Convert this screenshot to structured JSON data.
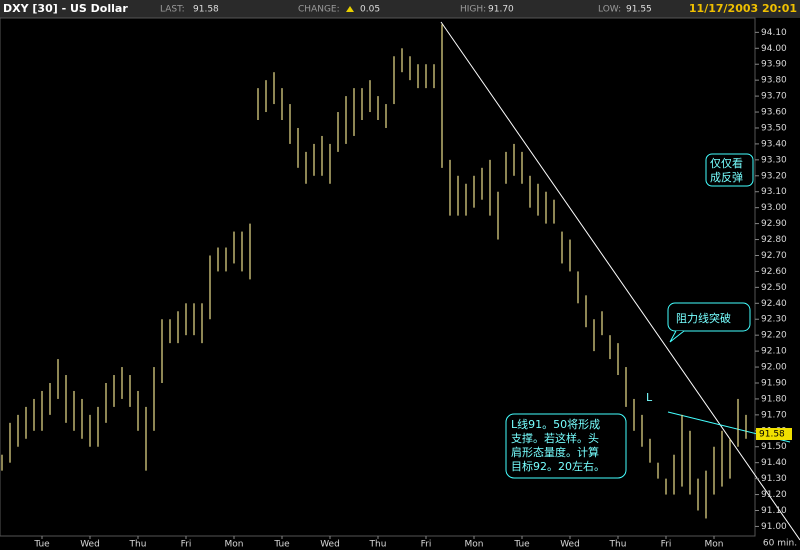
{
  "header": {
    "title": "DXY [30] - US Dollar",
    "last_label": "LAST:",
    "last_value": "91.58",
    "change_label": "CHANGE:",
    "change_value": "0.05",
    "high_label": "HIGH:",
    "high_value": "91.70",
    "low_label": "LOW:",
    "low_value": "91.55",
    "datetime": "11/17/2003 20:01"
  },
  "chart_data": {
    "type": "hilo",
    "color": "#ece08c",
    "x_unit_label": "60 min.",
    "categories": [
      null,
      null,
      null,
      null,
      null,
      "Tue",
      null,
      null,
      null,
      null,
      null,
      "Wed",
      null,
      null,
      null,
      null,
      null,
      "Thu",
      null,
      null,
      null,
      null,
      null,
      "Fri",
      null,
      null,
      null,
      null,
      null,
      "Mon",
      null,
      null,
      null,
      null,
      null,
      "Tue",
      null,
      null,
      null,
      null,
      null,
      "Wed",
      null,
      null,
      null,
      null,
      null,
      "Thu",
      null,
      null,
      null,
      null,
      null,
      "Fri",
      null,
      null,
      null,
      null,
      null,
      "Mon",
      null,
      null,
      null,
      null,
      null,
      "Tue",
      null,
      null,
      null,
      null,
      null,
      "Wed",
      null,
      null,
      null,
      null,
      null,
      "Thu",
      null,
      null,
      null,
      null,
      null,
      "Fri",
      null,
      null,
      null,
      null,
      null,
      "Mon",
      null,
      null,
      null,
      null
    ],
    "high": [
      91.45,
      91.65,
      91.7,
      91.75,
      91.8,
      91.85,
      91.9,
      92.05,
      91.95,
      91.85,
      91.8,
      91.7,
      91.75,
      91.9,
      91.95,
      92.0,
      91.95,
      91.85,
      91.75,
      92.0,
      92.3,
      92.3,
      92.35,
      92.4,
      92.4,
      92.4,
      92.7,
      92.75,
      92.75,
      92.85,
      92.85,
      92.9,
      93.75,
      93.8,
      93.85,
      93.75,
      93.65,
      93.5,
      93.35,
      93.4,
      93.45,
      93.4,
      93.6,
      93.7,
      93.75,
      93.75,
      93.8,
      93.7,
      93.65,
      93.95,
      94.0,
      93.95,
      93.9,
      93.9,
      93.9,
      94.15,
      93.3,
      93.2,
      93.15,
      93.2,
      93.25,
      93.3,
      93.1,
      93.35,
      93.4,
      93.35,
      93.2,
      93.15,
      93.1,
      93.05,
      92.85,
      92.8,
      92.6,
      92.45,
      92.3,
      92.35,
      92.2,
      92.15,
      92.0,
      91.8,
      91.7,
      91.55,
      91.4,
      91.3,
      91.45,
      91.7,
      91.6,
      91.3,
      91.35,
      91.5,
      91.6,
      91.55,
      91.8,
      91.7
    ],
    "low": [
      91.35,
      91.4,
      91.5,
      91.55,
      91.6,
      91.6,
      91.7,
      91.8,
      91.65,
      91.6,
      91.55,
      91.5,
      91.5,
      91.65,
      91.75,
      91.8,
      91.75,
      91.6,
      91.35,
      91.6,
      91.9,
      92.15,
      92.15,
      92.2,
      92.2,
      92.15,
      92.3,
      92.6,
      92.6,
      92.65,
      92.6,
      92.55,
      93.55,
      93.6,
      93.65,
      93.55,
      93.4,
      93.25,
      93.15,
      93.2,
      93.2,
      93.15,
      93.35,
      93.4,
      93.45,
      93.55,
      93.6,
      93.55,
      93.5,
      93.65,
      93.85,
      93.8,
      93.75,
      93.75,
      93.75,
      93.25,
      92.95,
      92.95,
      92.95,
      93.0,
      93.05,
      92.95,
      92.8,
      93.15,
      93.2,
      93.15,
      93.0,
      92.95,
      92.9,
      92.9,
      92.65,
      92.6,
      92.4,
      92.25,
      92.1,
      92.2,
      92.05,
      91.95,
      91.75,
      91.6,
      91.5,
      91.4,
      91.3,
      91.2,
      91.2,
      91.25,
      91.2,
      91.1,
      91.05,
      91.2,
      91.25,
      91.3,
      91.5,
      91.55
    ],
    "last": {
      "value": 91.58,
      "label": "91.58"
    },
    "ylim": [
      90.94,
      94.19
    ],
    "yticks": [
      {
        "value": 91.0,
        "label": "91.00"
      },
      {
        "value": 91.1,
        "label": "91.10"
      },
      {
        "value": 91.2,
        "label": "91.20"
      },
      {
        "value": 91.3,
        "label": "91.30"
      },
      {
        "value": 91.4,
        "label": "91.40"
      },
      {
        "value": 91.5,
        "label": "91.50"
      },
      {
        "value": 91.6,
        "label": "91.60"
      },
      {
        "value": 91.7,
        "label": "91.70"
      },
      {
        "value": 91.8,
        "label": "91.80"
      },
      {
        "value": 91.9,
        "label": "91.90"
      },
      {
        "value": 92.0,
        "label": "92.00"
      },
      {
        "value": 92.1,
        "label": "92.10"
      },
      {
        "value": 92.2,
        "label": "92.20"
      },
      {
        "value": 92.3,
        "label": "92.30"
      },
      {
        "value": 92.4,
        "label": "92.40"
      },
      {
        "value": 92.5,
        "label": "92.50"
      },
      {
        "value": 92.6,
        "label": "92.60"
      },
      {
        "value": 92.7,
        "label": "92.70"
      },
      {
        "value": 92.8,
        "label": "92.80"
      },
      {
        "value": 92.9,
        "label": "92.90"
      },
      {
        "value": 93.0,
        "label": "93.00"
      },
      {
        "value": 93.1,
        "label": "93.10"
      },
      {
        "value": 93.2,
        "label": "93.20"
      },
      {
        "value": 93.3,
        "label": "93.30"
      },
      {
        "value": 93.4,
        "label": "93.40"
      },
      {
        "value": 93.5,
        "label": "93.50"
      },
      {
        "value": 93.6,
        "label": "93.60"
      },
      {
        "value": 93.7,
        "label": "93.70"
      },
      {
        "value": 93.8,
        "label": "93.80"
      },
      {
        "value": 93.9,
        "label": "93.90"
      },
      {
        "value": 94.0,
        "label": "94.00"
      },
      {
        "value": 94.1,
        "label": "94.10"
      }
    ],
    "annotations": {
      "rebound": "仅仅看\n成反弹",
      "breakout": "阻力线突破",
      "support": "L线91。50将形成\n支撑。若这样。头\n肩形态量度。计算\n目标92。20左右。",
      "l_marker": "L"
    }
  }
}
